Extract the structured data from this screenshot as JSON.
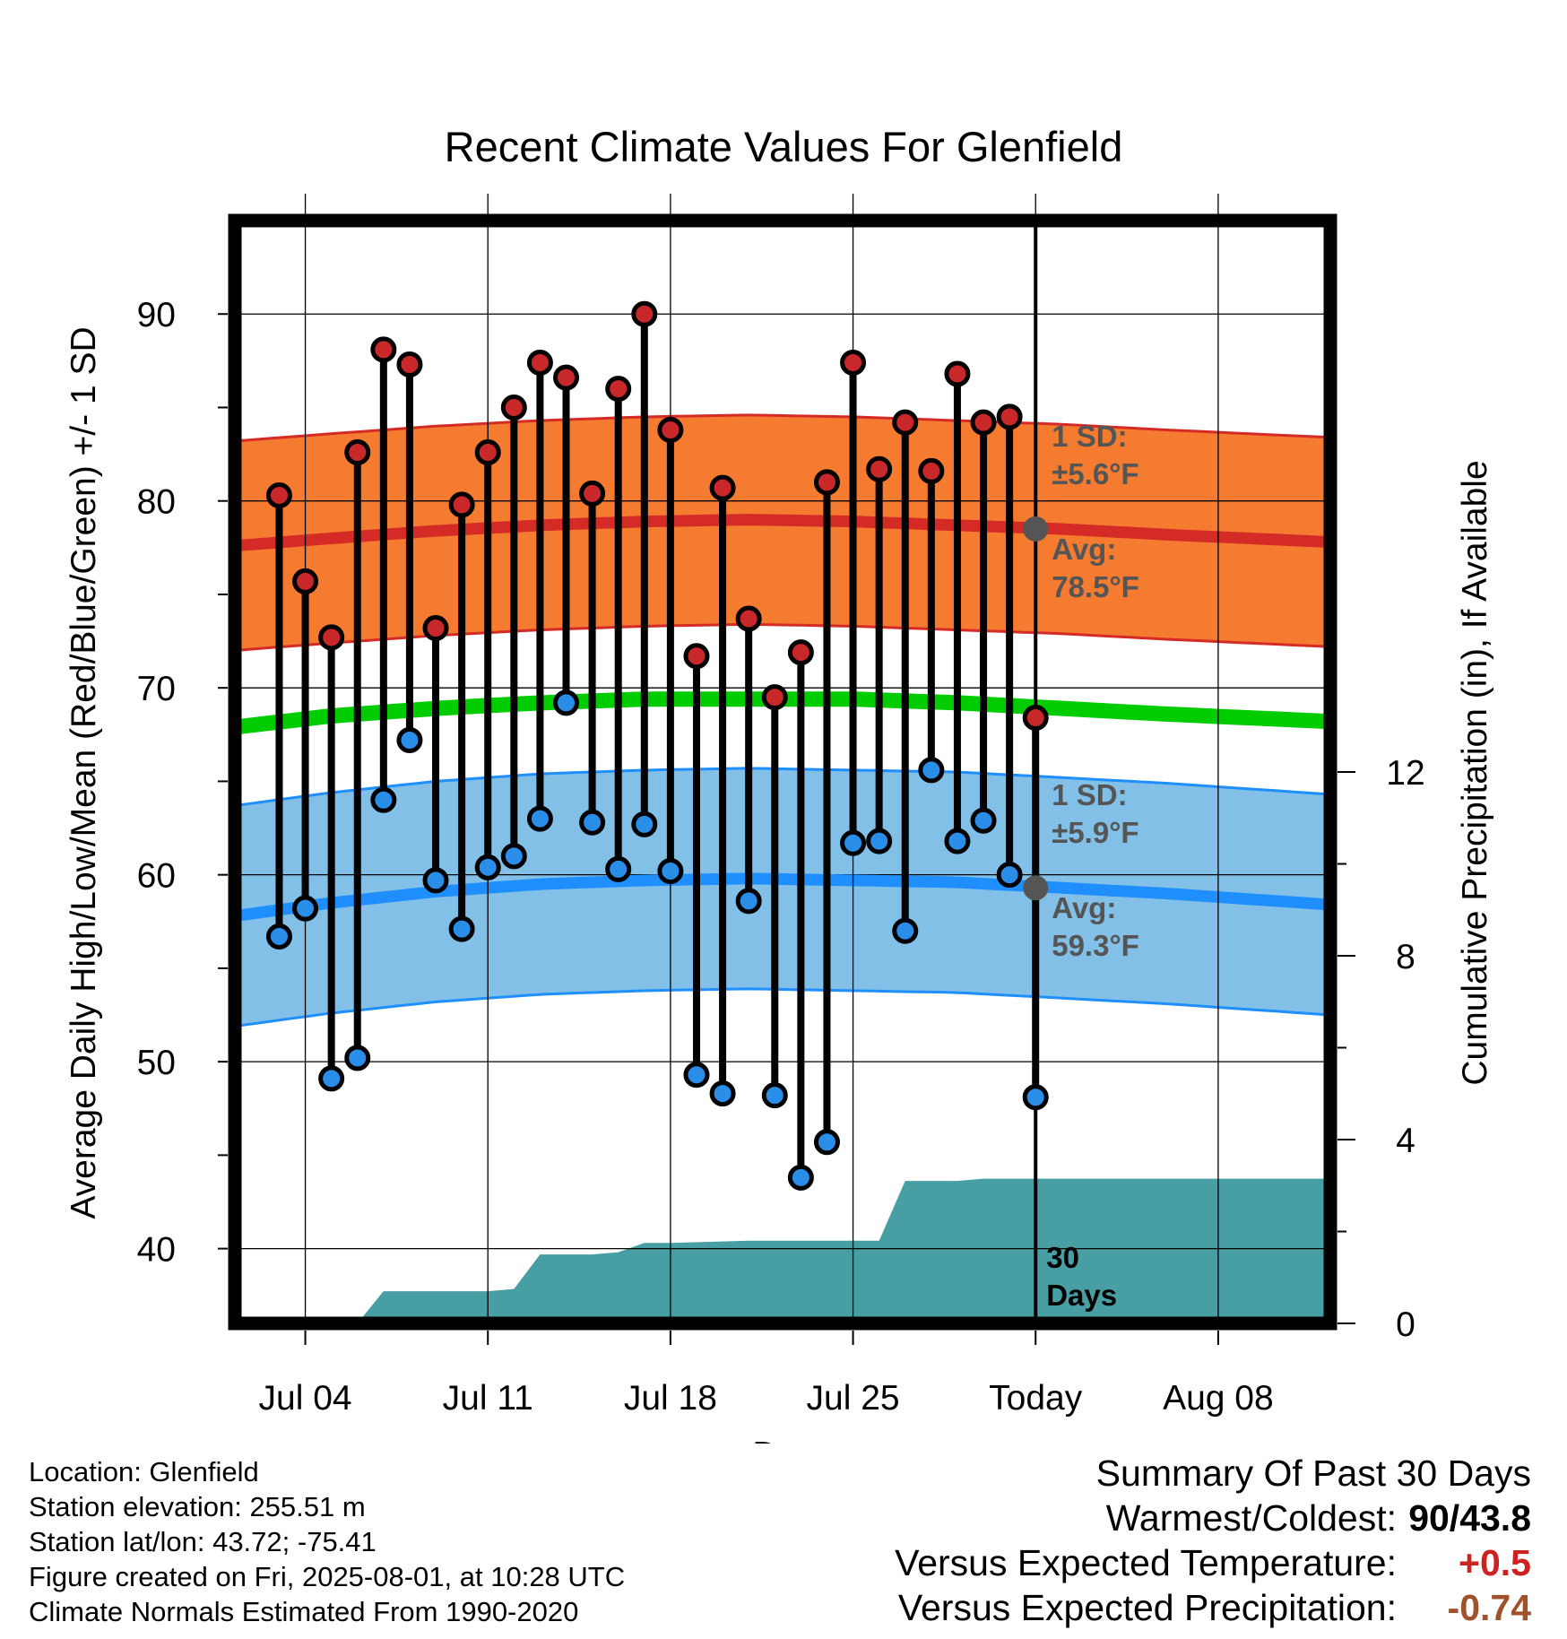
{
  "chart_data": {
    "type": "line",
    "title": "Recent Climate Values For Glenfield",
    "xlabel": "Day",
    "ylabel": "Average Daily High/Low/Mean (Red/Blue/Green) +/- 1 SD",
    "y2label": "Cumulative Precipitation (in), If Available",
    "ylim": [
      36,
      95
    ],
    "y2lim": [
      0,
      24
    ],
    "xlim": [
      -1.7,
      40.3
    ],
    "x_ticks": [
      {
        "pos": 1,
        "label": "Jul 04"
      },
      {
        "pos": 8,
        "label": "Jul 11"
      },
      {
        "pos": 15,
        "label": "Jul 18"
      },
      {
        "pos": 22,
        "label": "Jul 25"
      },
      {
        "pos": 29,
        "label": "Today"
      },
      {
        "pos": 36,
        "label": "Aug 08"
      }
    ],
    "y_ticks": [
      40,
      50,
      60,
      70,
      80,
      90
    ],
    "y2_ticks": [
      0,
      4,
      8,
      12
    ],
    "grid": true,
    "today_pos": 29,
    "days_label": "30\nDays",
    "daily_high": [
      80.3,
      75.7,
      72.7,
      82.6,
      88.1,
      87.3,
      73.2,
      79.8,
      82.6,
      85.0,
      87.4,
      86.6,
      80.4,
      86.0,
      90.0,
      83.8,
      71.7,
      80.7,
      73.7,
      69.5,
      71.9,
      81.0,
      87.4,
      81.7,
      84.2,
      81.6,
      86.8,
      84.2,
      84.5,
      68.4
    ],
    "daily_low": [
      56.7,
      58.2,
      49.1,
      50.2,
      64.0,
      67.2,
      59.7,
      57.1,
      60.4,
      61.0,
      63.0,
      69.2,
      62.8,
      60.3,
      62.7,
      60.2,
      49.3,
      48.3,
      58.6,
      48.2,
      43.8,
      45.7,
      61.7,
      61.8,
      57.0,
      65.6,
      61.8,
      62.9,
      60.0,
      48.1
    ],
    "normal_high": {
      "x": [
        -1.7,
        2,
        6,
        10,
        14,
        18,
        22,
        26,
        30,
        34,
        40.3
      ],
      "values": [
        77.6,
        78.0,
        78.4,
        78.7,
        78.9,
        79.0,
        78.9,
        78.7,
        78.5,
        78.2,
        77.8
      ]
    },
    "normal_low": {
      "x": [
        -1.7,
        2,
        6,
        10,
        14,
        18,
        22,
        26,
        30,
        34,
        40.3
      ],
      "values": [
        57.8,
        58.5,
        59.1,
        59.5,
        59.7,
        59.8,
        59.7,
        59.6,
        59.3,
        59.0,
        58.4
      ]
    },
    "normal_mean": {
      "x": [
        -1.7,
        2,
        6,
        10,
        14,
        18,
        22,
        26,
        30,
        34,
        40.3
      ],
      "values": [
        67.9,
        68.5,
        68.9,
        69.2,
        69.4,
        69.4,
        69.4,
        69.2,
        68.9,
        68.6,
        68.2
      ]
    },
    "high_sd": 5.6,
    "low_sd": 5.9,
    "high_avg_label": {
      "sd": "1 SD:",
      "sd_value": "±5.6°F",
      "avg": "Avg:",
      "avg_value": "78.5°F",
      "avg_value_num": 78.5
    },
    "low_avg_label": {
      "sd": "1 SD:",
      "sd_value": "±5.9°F",
      "avg": "Avg:",
      "avg_value": "59.3°F",
      "avg_value_num": 59.3
    },
    "precip_cumulative": {
      "x": [
        -1.7,
        3,
        4,
        7,
        8,
        9,
        10,
        12,
        13,
        14,
        15,
        18,
        21,
        22,
        23,
        24,
        26,
        27,
        28,
        40.3
      ],
      "values": [
        0,
        0,
        0.7,
        0.7,
        0.7,
        0.75,
        1.5,
        1.5,
        1.55,
        1.75,
        1.75,
        1.8,
        1.8,
        1.8,
        1.8,
        3.1,
        3.1,
        3.15,
        3.15,
        3.15
      ]
    },
    "colors": {
      "high_band": "#f47b2f",
      "high_line": "#d42b27",
      "low_band": "#82c0e8",
      "low_line": "#1f8fff",
      "mean_line": "#00cc00",
      "precip": "#479ea3",
      "high_dot": "#c8282a",
      "low_dot": "#2a8ee8",
      "annotation": "#555555",
      "plus": "#cc2222",
      "minus": "#a0522d"
    }
  },
  "info": {
    "location": "Location: Glenfield",
    "elevation": "Station elevation: 255.51 m",
    "latlon": "Station lat/lon: 43.72; -75.41",
    "created": "Figure created on Fri, 2025-08-01, at 10:28 UTC",
    "normals": "Climate Normals Estimated From 1990-2020"
  },
  "summary": {
    "title": "Summary Of Past 30 Days",
    "warmest_label": "Warmest/Coldest:",
    "warmest_value": "90/43.8",
    "temp_label": "Versus Expected Temperature:",
    "temp_value": "+0.5",
    "precip_label": "Versus Expected Precipitation:",
    "precip_value": "-0.74"
  }
}
